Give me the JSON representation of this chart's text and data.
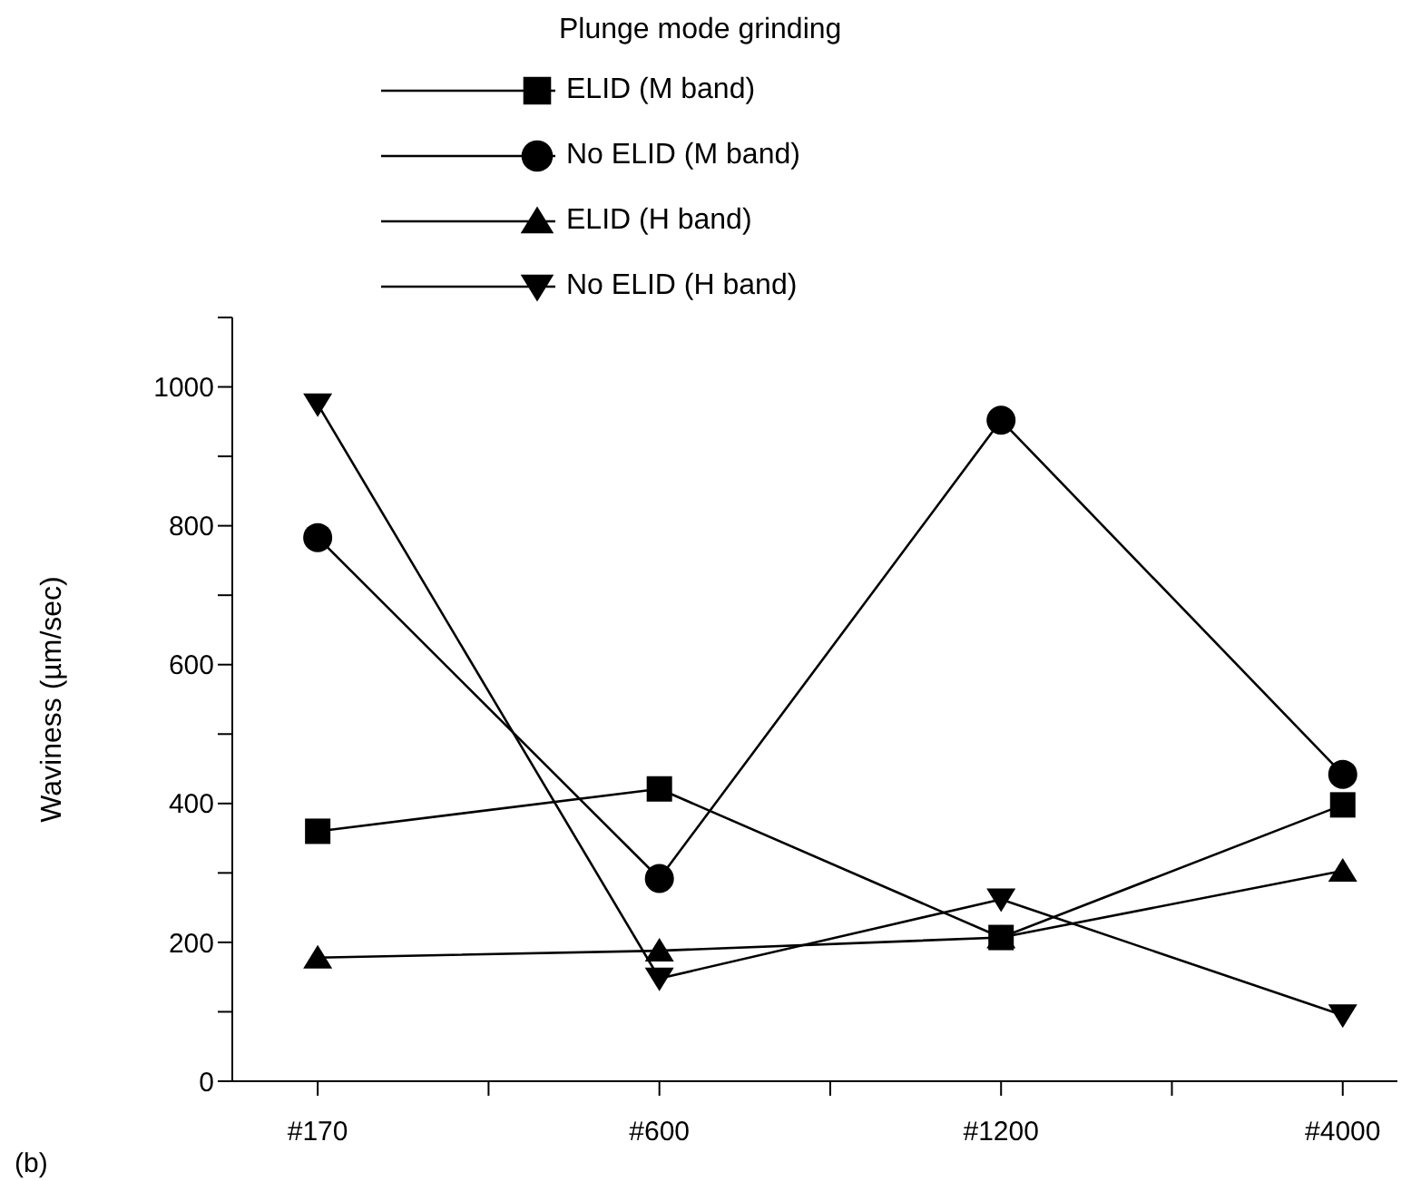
{
  "chart_data": {
    "type": "line",
    "legend_title": "Plunge mode grinding",
    "ylabel": "Waviness (µm/sec)",
    "categories": [
      "#170",
      "#600",
      "#1200",
      "#4000"
    ],
    "series": [
      {
        "name": "ELID (M band)",
        "color": "#000000",
        "marker": "square",
        "values": [
          360,
          421,
          207,
          398
        ]
      },
      {
        "name": "No ELID (M band)",
        "color": "#000000",
        "marker": "circle",
        "values": [
          783,
          292,
          952,
          442
        ]
      },
      {
        "name": "ELID (H band)",
        "color": "#000000",
        "marker": "triangle",
        "values": [
          178,
          188,
          207,
          303
        ]
      },
      {
        "name": "No ELID (H band)",
        "color": "#000000",
        "marker": "triangle-down",
        "values": [
          975,
          148,
          262,
          95
        ]
      }
    ],
    "ylim": [
      0,
      1100
    ],
    "yticks": [
      0,
      {
        "value": 100,
        "label": null
      },
      200,
      {
        "value": 300,
        "label": null
      },
      400,
      {
        "value": 500,
        "label": null
      },
      600,
      {
        "value": 700,
        "label": null
      },
      800,
      {
        "value": 900,
        "label": null
      },
      1000,
      {
        "value": 1100,
        "label": null
      }
    ],
    "grid": false,
    "legend": "top",
    "line_style": "solid",
    "annotations": [
      "(b)"
    ]
  }
}
